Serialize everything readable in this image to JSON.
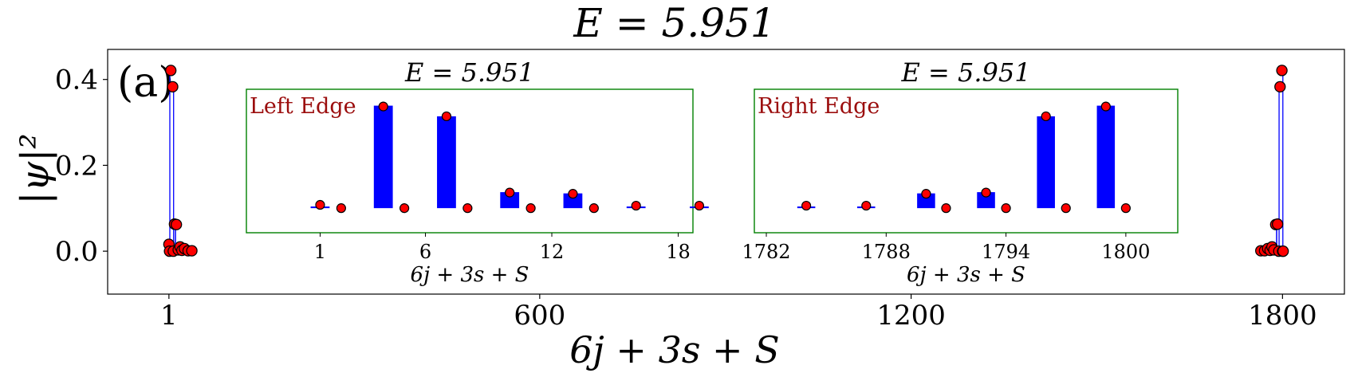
{
  "figure": {
    "title": "E = 5.951",
    "panel_label": "(a)"
  },
  "chart_data": [
    {
      "type": "scatter",
      "name": "main",
      "title": "E = 5.951",
      "xlabel": "6j + 3s + S",
      "ylabel": "|ψ|²",
      "xlim": [
        -98,
        1900
      ],
      "ylim": [
        -0.1,
        0.47
      ],
      "xticks": [
        1,
        600,
        1200,
        1800
      ],
      "xticklabels": [
        "1",
        "600",
        "1200",
        "1800"
      ],
      "yticks": [
        0.0,
        0.2,
        0.4
      ],
      "yticklabels": [
        "0.0",
        "0.2",
        "0.4"
      ],
      "marker_color": "#ff0000",
      "marker_edge": "#000000",
      "stem_color": "#0000ff",
      "points": [
        {
          "x": 1,
          "y": 0.016
        },
        {
          "x": 2,
          "y": 0.0
        },
        {
          "x": 4,
          "y": 0.421
        },
        {
          "x": 7,
          "y": 0.383
        },
        {
          "x": 8,
          "y": 0.0
        },
        {
          "x": 10,
          "y": 0.063
        },
        {
          "x": 13,
          "y": 0.062
        },
        {
          "x": 16,
          "y": 0.003
        },
        {
          "x": 19,
          "y": 0.01
        },
        {
          "x": 22,
          "y": 0.002
        },
        {
          "x": 26,
          "y": 0.006
        },
        {
          "x": 32,
          "y": 0.001
        },
        {
          "x": 38,
          "y": 0.001
        },
        {
          "x": 1765,
          "y": 0.001
        },
        {
          "x": 1771,
          "y": 0.001
        },
        {
          "x": 1776,
          "y": 0.006
        },
        {
          "x": 1780,
          "y": 0.002
        },
        {
          "x": 1783,
          "y": 0.01
        },
        {
          "x": 1786,
          "y": 0.003
        },
        {
          "x": 1789,
          "y": 0.062
        },
        {
          "x": 1792,
          "y": 0.063
        },
        {
          "x": 1794,
          "y": 0.0
        },
        {
          "x": 1796,
          "y": 0.383
        },
        {
          "x": 1799,
          "y": 0.421
        },
        {
          "x": 1800,
          "y": 0.0
        },
        {
          "x": 1801,
          "y": 0.0
        }
      ]
    },
    {
      "type": "bar",
      "name": "inset-left",
      "title": "E = 5.951",
      "label": "Left Edge",
      "xlabel": "6j + 3s + S",
      "xlim": [
        -2.5,
        18.7
      ],
      "ylim": [
        0.04,
        0.39
      ],
      "xticks": [
        1,
        6,
        12,
        18
      ],
      "xticklabels": [
        "1",
        "6",
        "12",
        "18"
      ],
      "bar_color": "#0000ff",
      "bar_base": 0.1,
      "bars": [
        {
          "x": 1,
          "top": 0.104
        },
        {
          "x": 4,
          "top": 0.35
        },
        {
          "x": 7,
          "top": 0.324
        },
        {
          "x": 10,
          "top": 0.139
        },
        {
          "x": 13,
          "top": 0.136
        },
        {
          "x": 16,
          "top": 0.104
        },
        {
          "x": 19,
          "top": 0.104
        }
      ],
      "points": [
        {
          "x": 1,
          "y": 0.108
        },
        {
          "x": 2,
          "y": 0.1
        },
        {
          "x": 4,
          "y": 0.348
        },
        {
          "x": 5,
          "y": 0.1
        },
        {
          "x": 7,
          "y": 0.324
        },
        {
          "x": 8,
          "y": 0.1
        },
        {
          "x": 10,
          "y": 0.138
        },
        {
          "x": 11,
          "y": 0.1
        },
        {
          "x": 13,
          "y": 0.135
        },
        {
          "x": 14,
          "y": 0.1
        },
        {
          "x": 16,
          "y": 0.106
        },
        {
          "x": 19,
          "y": 0.106
        }
      ]
    },
    {
      "type": "bar",
      "name": "inset-right",
      "title": "E = 5.951",
      "label": "Right Edge",
      "xlabel": "6j + 3s + S",
      "xlim": [
        1781.4,
        1802.6
      ],
      "ylim": [
        0.04,
        0.39
      ],
      "xticks": [
        1782,
        1788,
        1794,
        1800
      ],
      "xticklabels": [
        "1782",
        "1788",
        "1794",
        "1800"
      ],
      "bar_color": "#0000ff",
      "bar_base": 0.1,
      "bars": [
        {
          "x": 1784,
          "top": 0.104
        },
        {
          "x": 1787,
          "top": 0.104
        },
        {
          "x": 1790,
          "top": 0.136
        },
        {
          "x": 1793,
          "top": 0.139
        },
        {
          "x": 1796,
          "top": 0.324
        },
        {
          "x": 1799,
          "top": 0.35
        }
      ],
      "points": [
        {
          "x": 1784,
          "y": 0.106
        },
        {
          "x": 1787,
          "y": 0.106
        },
        {
          "x": 1790,
          "y": 0.135
        },
        {
          "x": 1791,
          "y": 0.1
        },
        {
          "x": 1793,
          "y": 0.138
        },
        {
          "x": 1794,
          "y": 0.1
        },
        {
          "x": 1796,
          "y": 0.324
        },
        {
          "x": 1797,
          "y": 0.1
        },
        {
          "x": 1799,
          "y": 0.348
        },
        {
          "x": 1800,
          "y": 0.1
        }
      ]
    }
  ]
}
